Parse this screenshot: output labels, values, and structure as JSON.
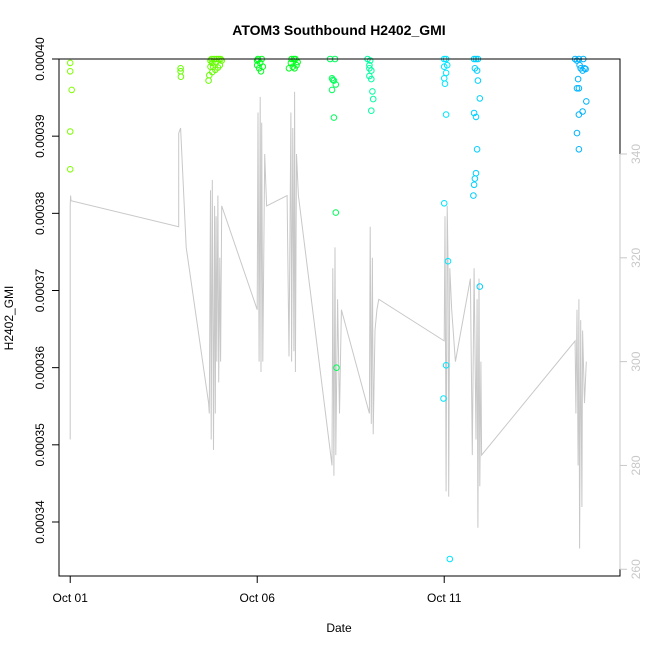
{
  "chart_data": {
    "type": "scatter",
    "title": "ATOM3 Southbound H2402_GMI",
    "xlabel": "Date",
    "ylabel": "H2402_GMI",
    "x_ticks": [
      {
        "value": 1,
        "label": "Oct 01"
      },
      {
        "value": 6,
        "label": "Oct 06"
      },
      {
        "value": 11,
        "label": "Oct 11"
      }
    ],
    "xlim": [
      0.7,
      15.7
    ],
    "ylim": [
      0.000333,
      0.0004
    ],
    "y_ticks": [
      0.00034,
      0.00035,
      0.00036,
      0.00037,
      0.00038,
      0.00039,
      0.0004
    ],
    "y_tick_labels": [
      "0.00034",
      "0.00035",
      "0.00036",
      "0.00037",
      "0.00038",
      "0.00039",
      "0.00040"
    ],
    "y2_ticks": [
      260,
      280,
      300,
      320,
      340
    ],
    "y2_tick_labels": [
      "260",
      "280",
      "300",
      "320",
      "340"
    ],
    "y2lim": [
      258.7,
      358.3
    ],
    "y2_color": "#c8c8c8",
    "secondary_series": {
      "name": "",
      "color": "#c8c8c8",
      "points": [
        [
          1.0,
          285
        ],
        [
          1.0,
          330
        ],
        [
          1.01,
          332
        ],
        [
          1.02,
          331
        ],
        [
          3.9,
          326
        ],
        [
          3.9,
          344
        ],
        [
          3.95,
          345
        ],
        [
          4.1,
          322
        ],
        [
          4.7,
          292
        ],
        [
          4.72,
          290
        ],
        [
          4.75,
          333
        ],
        [
          4.77,
          285
        ],
        [
          4.8,
          335
        ],
        [
          4.83,
          283
        ],
        [
          4.86,
          330
        ],
        [
          4.88,
          290
        ],
        [
          4.9,
          328
        ],
        [
          4.92,
          300
        ],
        [
          4.95,
          332
        ],
        [
          4.97,
          296
        ],
        [
          5.0,
          320
        ],
        [
          5.02,
          300
        ],
        [
          5.05,
          330
        ],
        [
          6.0,
          310
        ],
        [
          6.02,
          348
        ],
        [
          6.05,
          300
        ],
        [
          6.08,
          351
        ],
        [
          6.1,
          298
        ],
        [
          6.12,
          346
        ],
        [
          6.15,
          300
        ],
        [
          6.2,
          340
        ],
        [
          6.25,
          330
        ],
        [
          6.8,
          332
        ],
        [
          6.85,
          301
        ],
        [
          6.9,
          348
        ],
        [
          6.92,
          300
        ],
        [
          6.95,
          345
        ],
        [
          6.98,
          302
        ],
        [
          7.0,
          352
        ],
        [
          7.02,
          298
        ],
        [
          7.05,
          340
        ],
        [
          7.1,
          332
        ],
        [
          8.0,
          280
        ],
        [
          8.02,
          318
        ],
        [
          8.05,
          278
        ],
        [
          8.08,
          322
        ],
        [
          8.1,
          282
        ],
        [
          8.15,
          312
        ],
        [
          8.2,
          290
        ],
        [
          8.25,
          310
        ],
        [
          9.0,
          290
        ],
        [
          9.02,
          326
        ],
        [
          9.05,
          288
        ],
        [
          9.08,
          320
        ],
        [
          9.1,
          286
        ],
        [
          9.15,
          306
        ],
        [
          9.2,
          310
        ],
        [
          9.25,
          312
        ],
        [
          11.0,
          304
        ],
        [
          11.02,
          328
        ],
        [
          11.05,
          275
        ],
        [
          11.08,
          330
        ],
        [
          11.1,
          320
        ],
        [
          11.12,
          274
        ],
        [
          11.15,
          318
        ],
        [
          11.2,
          310
        ],
        [
          11.3,
          300
        ],
        [
          11.7,
          316
        ],
        [
          11.75,
          282
        ],
        [
          11.8,
          318
        ],
        [
          11.85,
          285
        ],
        [
          11.88,
          312
        ],
        [
          11.9,
          268
        ],
        [
          11.93,
          316
        ],
        [
          11.95,
          276
        ],
        [
          11.98,
          300
        ],
        [
          12.0,
          282
        ],
        [
          14.5,
          304
        ],
        [
          14.52,
          290
        ],
        [
          14.55,
          310
        ],
        [
          14.58,
          280
        ],
        [
          14.6,
          312
        ],
        [
          14.62,
          264
        ],
        [
          14.65,
          308
        ],
        [
          14.68,
          272
        ],
        [
          14.7,
          306
        ],
        [
          14.75,
          292
        ],
        [
          14.8,
          300
        ]
      ]
    },
    "series": [
      {
        "color": "#7fff00",
        "points": [
          [
            1.0,
            0.0003995
          ],
          [
            1.0,
            0.0003984
          ],
          [
            1.04,
            0.000396
          ],
          [
            1.0,
            0.0003906
          ],
          [
            1.0,
            0.0003857
          ]
        ]
      },
      {
        "color": "#66ff00",
        "points": [
          [
            3.95,
            0.0003988
          ],
          [
            3.95,
            0.0003984
          ],
          [
            3.96,
            0.0003977
          ],
          [
            4.7,
            0.0003972
          ],
          [
            4.72,
            0.0003979
          ],
          [
            4.75,
            0.0003998
          ],
          [
            4.78,
            0.0004
          ],
          [
            4.8,
            0.0003995
          ],
          [
            4.82,
            0.000399
          ],
          [
            4.85,
            0.0004
          ],
          [
            4.88,
            0.0003986
          ],
          [
            4.9,
            0.0003996
          ],
          [
            4.92,
            0.0004
          ],
          [
            4.95,
            0.0003989
          ],
          [
            4.97,
            0.0004
          ],
          [
            5.0,
            0.0003992
          ],
          [
            5.02,
            0.0004
          ],
          [
            5.05,
            0.0003998
          ],
          [
            4.75,
            0.000399
          ],
          [
            4.8,
            0.0003983
          ]
        ]
      },
      {
        "color": "#00ff1e",
        "points": [
          [
            6.0,
            0.0003992
          ],
          [
            6.02,
            0.0004
          ],
          [
            6.05,
            0.0003988
          ],
          [
            6.08,
            0.0003995
          ],
          [
            6.1,
            0.0003984
          ],
          [
            6.12,
            0.0004
          ],
          [
            6.15,
            0.000399
          ],
          [
            6.0,
            0.0003998
          ],
          [
            6.85,
            0.0003988
          ],
          [
            6.9,
            0.0003995
          ],
          [
            6.92,
            0.0004
          ],
          [
            6.95,
            0.000399
          ],
          [
            6.98,
            0.0004
          ],
          [
            7.0,
            0.0003988
          ],
          [
            7.02,
            0.0004
          ],
          [
            7.05,
            0.0003992
          ],
          [
            7.08,
            0.0003996
          ]
        ]
      },
      {
        "color": "#00ff5a",
        "points": [
          [
            7.95,
            0.0004
          ],
          [
            8.0,
            0.0003975
          ],
          [
            8.02,
            0.0003973
          ],
          [
            8.05,
            0.0003972
          ],
          [
            8.08,
            0.0004
          ],
          [
            8.1,
            0.0003967
          ],
          [
            8.0,
            0.000396
          ],
          [
            8.05,
            0.0003924
          ],
          [
            8.1,
            0.0003801
          ],
          [
            8.12,
            0.00036
          ]
        ]
      },
      {
        "color": "#00ffa0",
        "points": [
          [
            8.95,
            0.0004
          ],
          [
            9.0,
            0.0003992
          ],
          [
            9.02,
            0.0003998
          ],
          [
            9.05,
            0.0003985
          ],
          [
            9.0,
            0.0003978
          ],
          [
            9.05,
            0.0003974
          ],
          [
            9.08,
            0.0003958
          ],
          [
            9.1,
            0.0003948
          ],
          [
            9.05,
            0.0003933
          ],
          [
            9.0,
            0.0003988
          ]
        ]
      },
      {
        "color": "#00e5ff",
        "points": [
          [
            11.0,
            0.0004
          ],
          [
            11.05,
            0.0004
          ],
          [
            11.08,
            0.0003992
          ],
          [
            11.0,
            0.000399
          ],
          [
            11.05,
            0.0003982
          ],
          [
            11.0,
            0.0003975
          ],
          [
            11.02,
            0.0003968
          ],
          [
            11.05,
            0.0003928
          ],
          [
            11.0,
            0.0003813
          ],
          [
            11.1,
            0.0003738
          ],
          [
            10.98,
            0.000356
          ],
          [
            11.05,
            0.0003603
          ],
          [
            11.15,
            0.0003352
          ]
        ]
      },
      {
        "color": "#00d0ff",
        "points": [
          [
            11.8,
            0.0004
          ],
          [
            11.85,
            0.0004
          ],
          [
            11.9,
            0.0004
          ],
          [
            11.82,
            0.0003988
          ],
          [
            11.88,
            0.0003985
          ],
          [
            11.9,
            0.0003972
          ],
          [
            11.95,
            0.0003949
          ],
          [
            11.8,
            0.000393
          ],
          [
            11.85,
            0.0003925
          ],
          [
            11.88,
            0.0003883
          ],
          [
            11.85,
            0.0003852
          ],
          [
            11.82,
            0.0003845
          ],
          [
            11.8,
            0.0003837
          ],
          [
            11.78,
            0.0003823
          ],
          [
            11.95,
            0.0003705
          ]
        ]
      },
      {
        "color": "#00b4ff",
        "points": [
          [
            14.5,
            0.0004
          ],
          [
            14.55,
            0.0003998
          ],
          [
            14.6,
            0.0004
          ],
          [
            14.62,
            0.0003992
          ],
          [
            14.65,
            0.0003988
          ],
          [
            14.7,
            0.0003985
          ],
          [
            14.72,
            0.0004
          ],
          [
            14.75,
            0.0003988
          ],
          [
            14.78,
            0.0003987
          ],
          [
            14.58,
            0.0003974
          ],
          [
            14.55,
            0.0003962
          ],
          [
            14.6,
            0.0003962
          ],
          [
            14.8,
            0.0003945
          ],
          [
            14.7,
            0.0003932
          ],
          [
            14.6,
            0.0003928
          ],
          [
            14.55,
            0.0003904
          ],
          [
            14.6,
            0.0003883
          ]
        ]
      }
    ]
  }
}
